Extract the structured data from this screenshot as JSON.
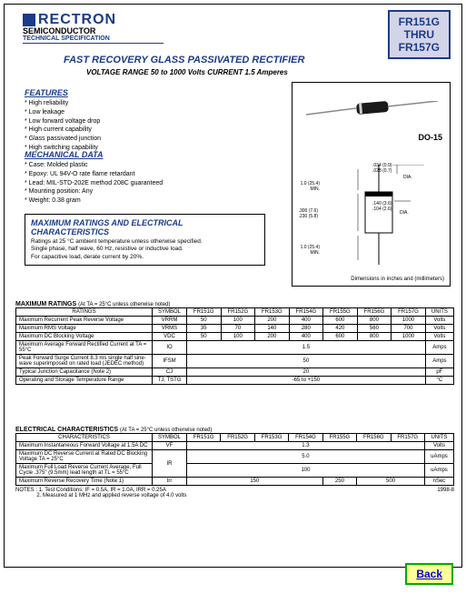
{
  "header": {
    "logo": "RECTRON",
    "sub1": "SEMICONDUCTOR",
    "sub2": "TECHNICAL SPECIFICATION"
  },
  "partbox": {
    "line1": "FR151G",
    "line2": "THRU",
    "line3": "FR157G"
  },
  "title": "FAST RECOVERY GLASS PASSIVATED RECTIFIER",
  "subtitle": "VOLTAGE RANGE  50 to 1000 Volts   CURRENT 1.5 Amperes",
  "features": {
    "heading": "FEATURES",
    "items": [
      "* High reliability",
      "* Low leakage",
      "* Low forward voltage drop",
      "* High current capability",
      "* Glass passivated junction",
      "* High switching capability"
    ]
  },
  "mechanical": {
    "heading": "MECHANICAL DATA",
    "items": [
      "* Case: Molded plastic",
      "* Epoxy: UL 94V-O rate flame retardant",
      "* Lead: MIL-STD-202E method 208C guaranteed",
      "* Mounting position: Any",
      "* Weight: 0.38 gram"
    ]
  },
  "ratings_summary": {
    "heading": "MAXIMUM RATINGS AND ELECTRICAL CHARACTERISTICS",
    "line1": "Ratings at 25 °C ambient temperature unless otherwise specified.",
    "line2": "Single phase, half wave, 60 Hz, resistive or inductive load.",
    "line3": "For capacitive load, derate current by 20%."
  },
  "diagram": {
    "package": "DO-15",
    "dim_note": "Dimensions in inches and (millimeters)",
    "dims": {
      "d1": ".034 (0.9)\n.028 (0.7)",
      "d2": "1.0 (25.4)\nMIN.",
      "d3": ".300 (7.6)\n.230 (5.8)",
      "d4": ".140 (3.6)\n.104 (2.6)",
      "d5": "1.0 (25.4)\nMIN."
    },
    "labels": {
      "dia1": "DIA.",
      "dia2": "DIA."
    }
  },
  "max_ratings": {
    "title": "MAXIMUM RATINGS",
    "note": "(At TA = 25°C unless otherwise noted)",
    "headers": [
      "RATINGS",
      "SYMBOL",
      "FR151G",
      "FR152G",
      "FR153G",
      "FR154G",
      "FR155G",
      "FR156G",
      "FR157G",
      "UNITS"
    ],
    "rows": [
      {
        "label": "Maximum Recurrent Peak Reverse Voltage",
        "symbol": "VRRM",
        "vals": [
          "50",
          "100",
          "200",
          "400",
          "600",
          "800",
          "1000"
        ],
        "unit": "Volts"
      },
      {
        "label": "Maximum RMS Voltage",
        "symbol": "VRMS",
        "vals": [
          "35",
          "70",
          "140",
          "280",
          "420",
          "560",
          "700"
        ],
        "unit": "Volts"
      },
      {
        "label": "Maximum DC Blocking Voltage",
        "symbol": "VDC",
        "vals": [
          "50",
          "100",
          "200",
          "400",
          "600",
          "800",
          "1000"
        ],
        "unit": "Volts"
      },
      {
        "label": "Maximum Average Forward Rectified Current\nat TA = 55°C",
        "symbol": "IO",
        "span": "1.5",
        "unit": "Amps"
      },
      {
        "label": "Peak Forward Surge Current 8.3 ms single half sine-wave\nsuperimposed on rated load (JEDEC method)",
        "symbol": "IFSM",
        "span": "50",
        "unit": "Amps"
      },
      {
        "label": "Typical Junction Capacitance (Note 2)",
        "symbol": "CJ",
        "span": "20",
        "unit": "pF"
      },
      {
        "label": "Operating and Storage Temperature Range",
        "symbol": "TJ, TSTG",
        "span": "-65 to +150",
        "unit": "°C"
      }
    ]
  },
  "electrical": {
    "title": "ELECTRICAL CHARACTERISTICS",
    "note": "(At TA = 25°C unless otherwise noted)",
    "headers": [
      "CHARACTERISTICS",
      "SYMBOL",
      "FR151G",
      "FR152G",
      "FR153G",
      "FR154G",
      "FR155G",
      "FR156G",
      "FR157G",
      "UNITS"
    ],
    "rows": [
      {
        "label": "Maximum Instantaneous Forward Voltage at 1.5A DC",
        "symbol": "VF",
        "span": "1.3",
        "unit": "Volts"
      },
      {
        "label": "Maximum DC Reverse Current\nat Rated DC Blocking Voltage TA = 25°C",
        "symbol": "IR",
        "rowspan": true,
        "span": "5.0",
        "unit": "uAmps"
      },
      {
        "label": "Maximum Full Load Reverse Current Average,\nFull Cycle .375\" (9.5mm) lead length at TL = 55°C",
        "symbol": "",
        "span": "100",
        "unit": "uAmps"
      },
      {
        "label": "Maximum Reverse Recovery Time (Note 1)",
        "symbol": "trr",
        "vals_custom": [
          {
            "span": 4,
            "val": "150"
          },
          {
            "span": 1,
            "val": "250"
          },
          {
            "span": 2,
            "val": "500"
          }
        ],
        "unit": "nSec"
      }
    ]
  },
  "notes": {
    "label": "NOTES :",
    "n1": "1. Test Conditions: IF = 0.5A, IR = 1.0A, IRR = 0.25A",
    "n2": "2. Measured at 1 MHz and applied reverse voltage of 4.0 volts"
  },
  "date_code": "1998-8",
  "back_btn": "Back"
}
